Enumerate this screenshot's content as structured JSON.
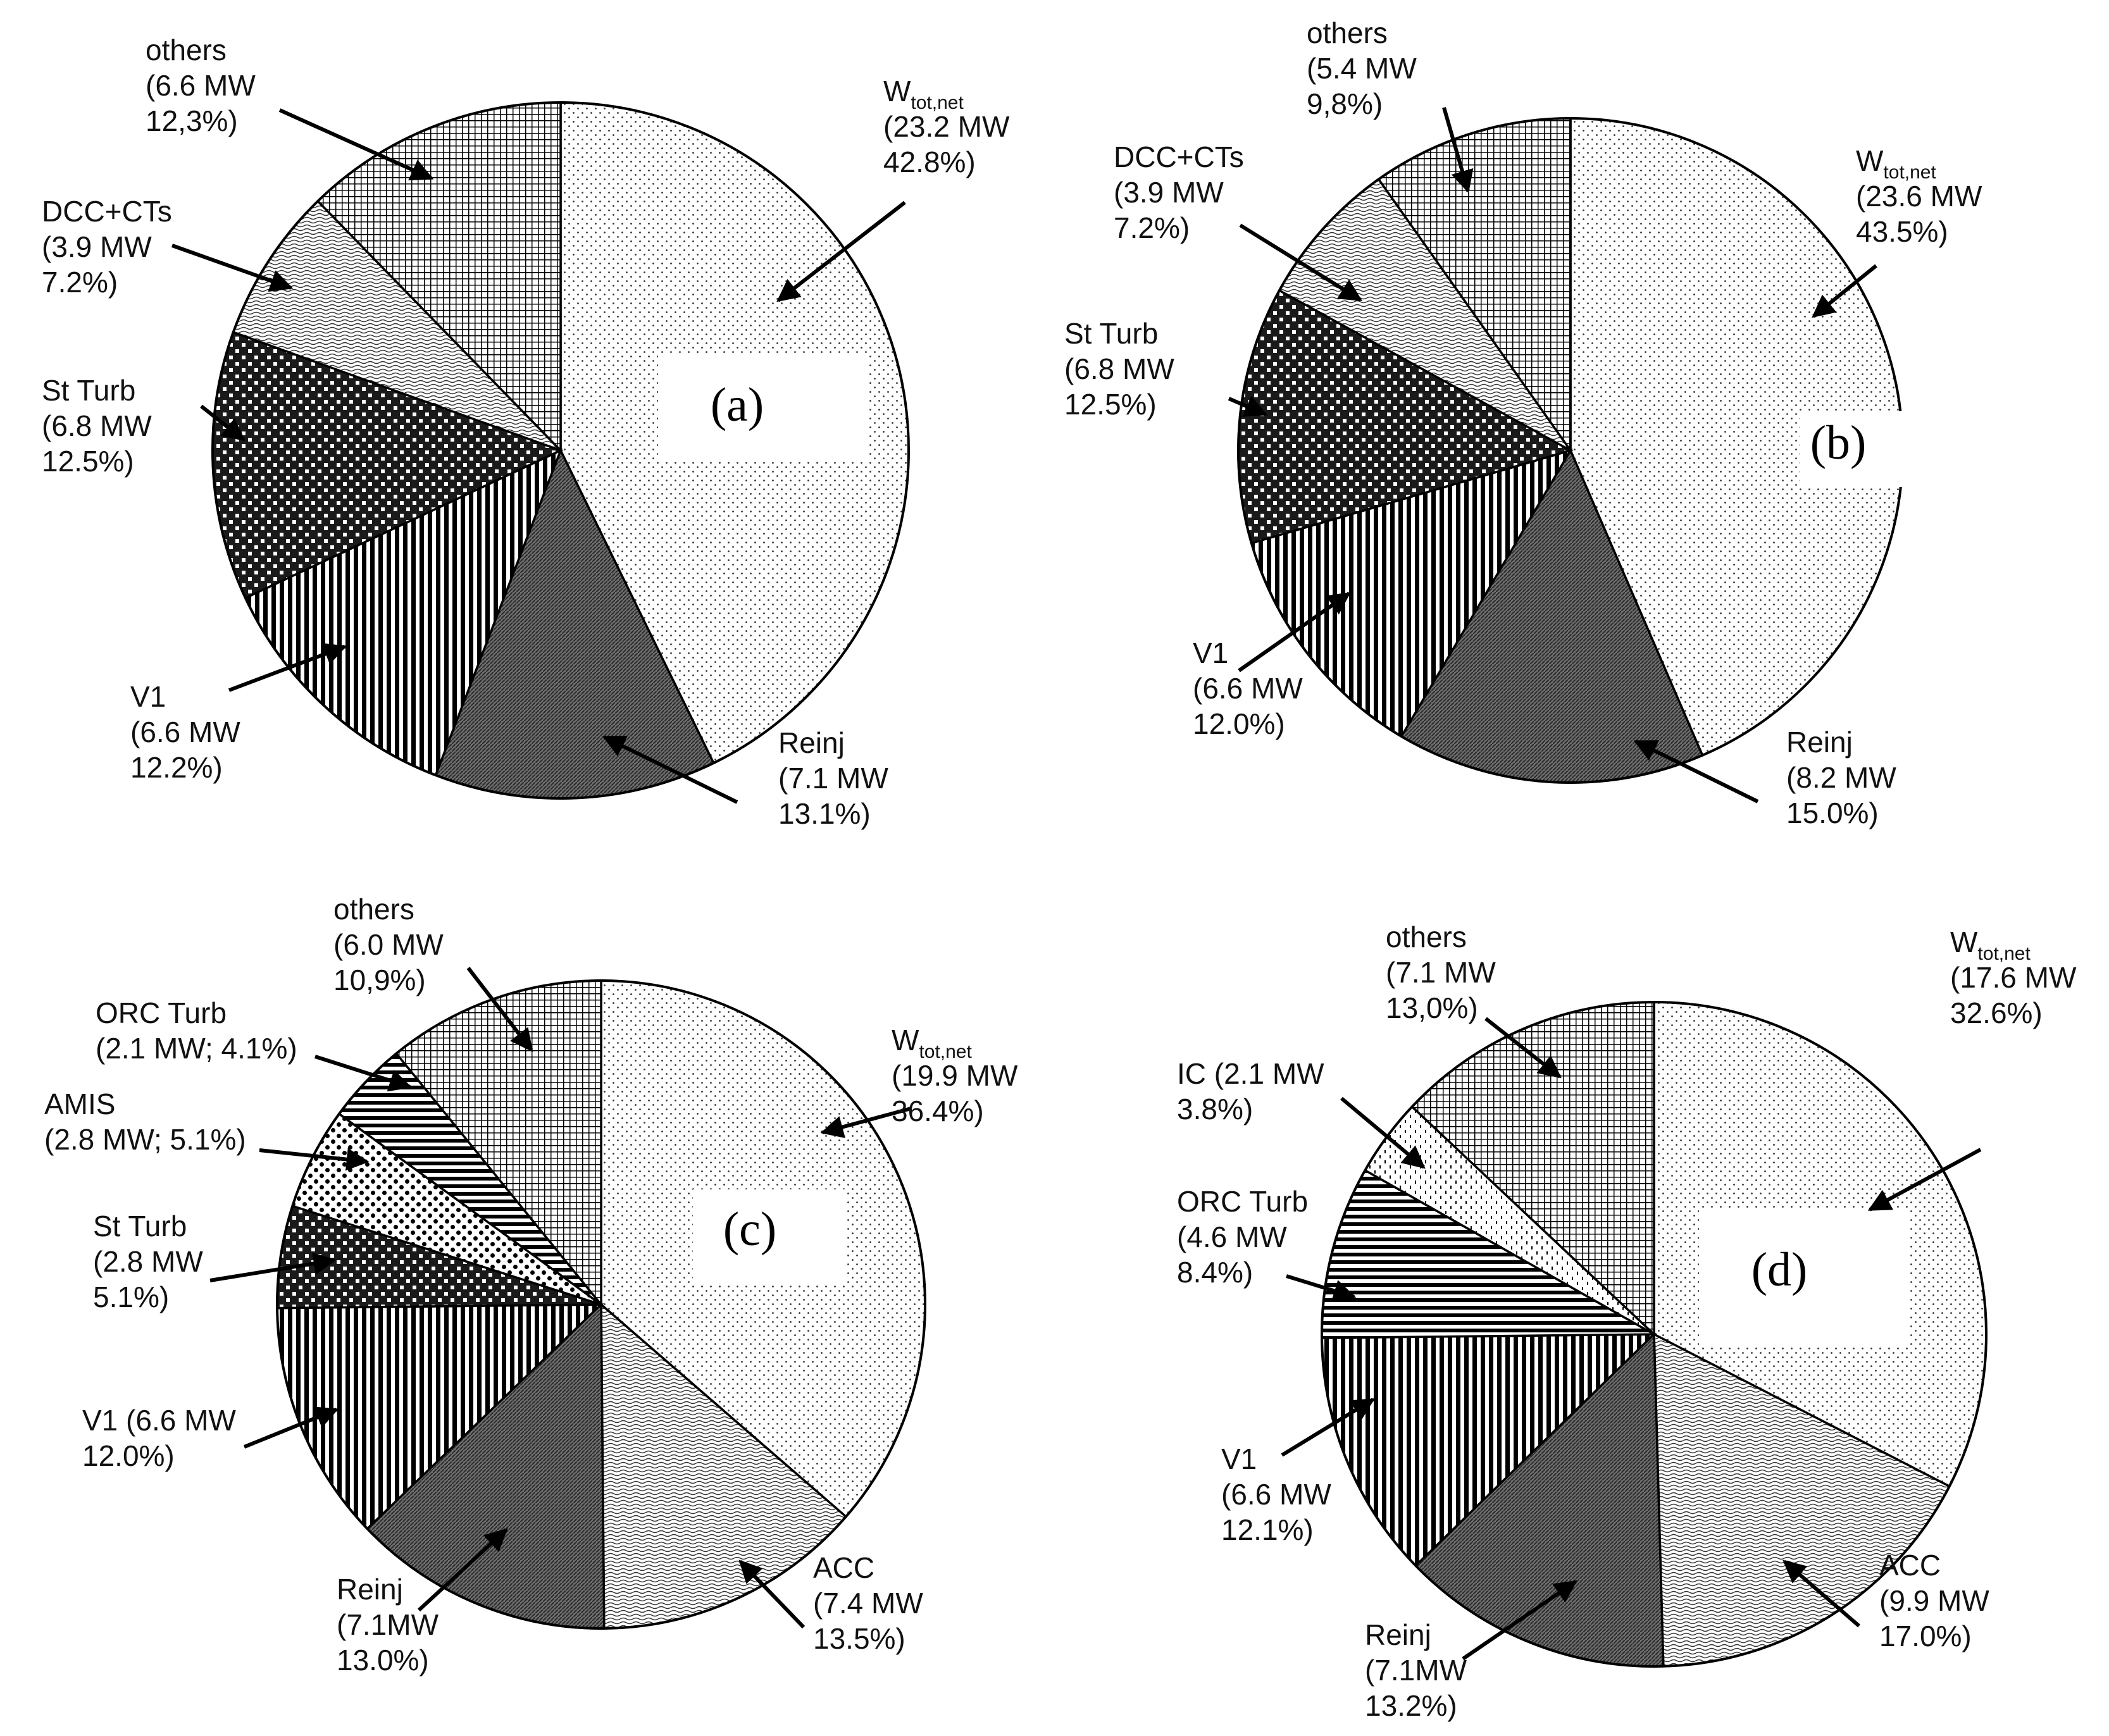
{
  "chart_data": [
    {
      "type": "pie",
      "panel": "(a)",
      "slices": [
        {
          "name": "W",
          "subscript": "tot,net",
          "line2": "(23.2 MW",
          "line3": "42.8%)",
          "value": 42.8,
          "pattern": "p-dots"
        },
        {
          "name": "Reinj",
          "line2": "(7.1 MW",
          "line3": "13.1%)",
          "value": 13.1,
          "pattern": "p-dark"
        },
        {
          "name": "V1",
          "line2": "(6.6 MW",
          "line3": "12.2%)",
          "value": 12.2,
          "pattern": "p-vstripe"
        },
        {
          "name": "St Turb",
          "line2": "(6.8 MW",
          "line3": "12.5%)",
          "value": 12.5,
          "pattern": "p-checker"
        },
        {
          "name": "DCC+CTs",
          "line2": "(3.9 MW",
          "line3": "7.2%)",
          "value": 7.2,
          "pattern": "p-wave"
        },
        {
          "name": "others",
          "line2": "(6.6 MW",
          "line3": "12,3%)",
          "value": 12.3,
          "pattern": "p-grid"
        }
      ]
    },
    {
      "type": "pie",
      "panel": "(b)",
      "slices": [
        {
          "name": "W",
          "subscript": "tot,net",
          "line2": "(23.6 MW",
          "line3": "43.5%)",
          "value": 43.5,
          "pattern": "p-dots"
        },
        {
          "name": "Reinj",
          "line2": "(8.2 MW",
          "line3": "15.0%)",
          "value": 15.0,
          "pattern": "p-dark"
        },
        {
          "name": "V1",
          "line2": "(6.6 MW",
          "line3": "12.0%)",
          "value": 12.0,
          "pattern": "p-vstripe"
        },
        {
          "name": "St Turb",
          "line2": "(6.8 MW",
          "line3": "12.5%)",
          "value": 12.5,
          "pattern": "p-checker"
        },
        {
          "name": "DCC+CTs",
          "line2": "(3.9 MW",
          "line3": "7.2%)",
          "value": 7.2,
          "pattern": "p-wave"
        },
        {
          "name": "others",
          "line2": "(5.4 MW",
          "line3": "9,8%)",
          "value": 9.8,
          "pattern": "p-grid"
        }
      ]
    },
    {
      "type": "pie",
      "panel": "(c)",
      "slices": [
        {
          "name": "W",
          "subscript": "tot,net",
          "line2": "(19.9 MW",
          "line3": "36.4%)",
          "value": 36.4,
          "pattern": "p-dots"
        },
        {
          "name": "ACC",
          "line2": "(7.4 MW",
          "line3": "13.5%)",
          "value": 13.5,
          "pattern": "p-wave"
        },
        {
          "name": "Reinj",
          "line2": "(7.1MW",
          "line3": "13.0%)",
          "value": 13.0,
          "pattern": "p-dark"
        },
        {
          "name": "V1 (6.6 MW",
          "line2": "12.0%)",
          "value": 12.0,
          "pattern": "p-vstripe"
        },
        {
          "name": "St Turb",
          "line2": "(2.8 MW",
          "line3": "5.1%)",
          "value": 5.1,
          "pattern": "p-checker"
        },
        {
          "name": "AMIS",
          "line2": "(2.8 MW; 5.1%)",
          "value": 5.1,
          "pattern": "p-bigdots"
        },
        {
          "name": "ORC Turb",
          "line2": "(2.1 MW; 4.1%)",
          "value": 4.1,
          "pattern": "p-hstripe"
        },
        {
          "name": "others",
          "line2": "(6.0 MW",
          "line3": "10,9%)",
          "value": 10.9,
          "pattern": "p-grid"
        }
      ]
    },
    {
      "type": "pie",
      "panel": "(d)",
      "slices": [
        {
          "name": "W",
          "subscript": "tot,net",
          "line2": "(17.6 MW",
          "line3": "32.6%)",
          "value": 32.6,
          "pattern": "p-dots"
        },
        {
          "name": "ACC",
          "line2": "(9.9 MW",
          "line3": "17.0%)",
          "value": 17.0,
          "pattern": "p-wave"
        },
        {
          "name": "Reinj",
          "line2": "(7.1MW",
          "line3": "13.2%)",
          "value": 13.2,
          "pattern": "p-dark"
        },
        {
          "name": "V1",
          "line2": "(6.6 MW",
          "line3": "12.1%)",
          "value": 12.1,
          "pattern": "p-vstripe"
        },
        {
          "name": "ORC Turb",
          "line2": "(4.6 MW",
          "line3": "8.4%)",
          "value": 8.4,
          "pattern": "p-hstripe"
        },
        {
          "name": "IC  (2.1 MW",
          "line2": "3.8%)",
          "value": 3.8,
          "pattern": "p-ic"
        },
        {
          "name": "others",
          "line2": "(7.1 MW",
          "line3": "13,0%)",
          "value": 13.0,
          "pattern": "p-grid"
        }
      ]
    }
  ]
}
